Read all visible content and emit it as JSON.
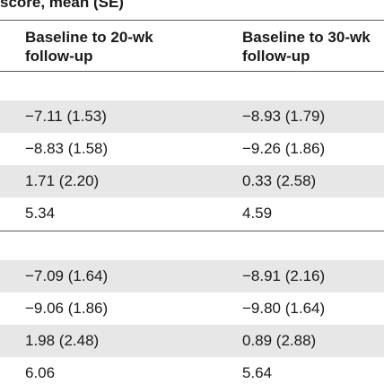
{
  "table": {
    "header_partial": "score, mean (SE)",
    "columns": [
      "Baseline to 20-wk follow-up",
      "Baseline to 30-wk follow-up"
    ],
    "section_1": {
      "rows": [
        [
          "−7.11 (1.53)",
          "−8.93 (1.79)"
        ],
        [
          "−8.83 (1.58)",
          "−9.26 (1.86)"
        ],
        [
          "1.71 (2.20)",
          "0.33 (2.58)"
        ],
        [
          "5.34",
          "4.59"
        ]
      ]
    },
    "section_2": {
      "rows": [
        [
          "−7.09 (1.64)",
          "−8.91 (2.16)"
        ],
        [
          "−9.06 (1.86)",
          "−9.80 (1.64)"
        ],
        [
          "1.98 (2.48)",
          "0.89 (2.88)"
        ],
        [
          "6.06",
          "5.64"
        ]
      ]
    }
  }
}
